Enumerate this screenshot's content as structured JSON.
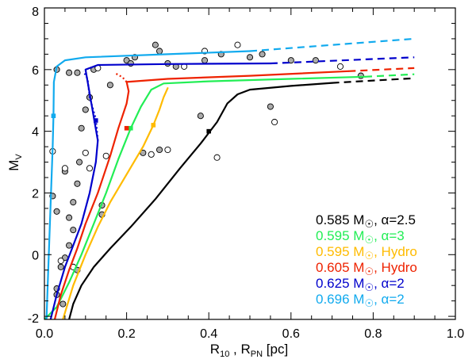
{
  "chart_data": {
    "type": "line",
    "xlabel": "R",
    "xlabel_sub1": "10",
    "xlabel_sep": " , R",
    "xlabel_sub2": "PN",
    "xlabel_unit": " [pc]",
    "ylabel": "M",
    "ylabel_sub": "V",
    "xlim": [
      0.0,
      1.0
    ],
    "ylim": [
      -2.1,
      8.0
    ],
    "xticks": [
      0.0,
      0.2,
      0.4,
      0.6,
      0.8,
      1.0
    ],
    "xtick_labels": [
      "0.0",
      "0.2",
      "0.4",
      "0.6",
      "0.8",
      "1.0"
    ],
    "yticks": [
      -2,
      0,
      2,
      4,
      6,
      8
    ],
    "ytick_labels": [
      "-2",
      "0",
      "2",
      "4",
      "6",
      "8"
    ],
    "series": [
      {
        "name": "0.585 M☉, α=2.5",
        "mass": "0.585 M",
        "param": ", α=2.5",
        "color": "#000000",
        "solid": [
          [
            0.06,
            -2.1
          ],
          [
            0.07,
            -1.6
          ],
          [
            0.09,
            -1.0
          ],
          [
            0.12,
            -0.4
          ],
          [
            0.16,
            0.2
          ],
          [
            0.21,
            0.9
          ],
          [
            0.27,
            1.8
          ],
          [
            0.33,
            2.8
          ],
          [
            0.38,
            3.6
          ],
          [
            0.42,
            4.3
          ],
          [
            0.445,
            4.9
          ],
          [
            0.47,
            5.2
          ],
          [
            0.5,
            5.35
          ],
          [
            0.6,
            5.47
          ],
          [
            0.7,
            5.57
          ]
        ],
        "dashed": [
          [
            0.7,
            5.57
          ],
          [
            0.9,
            5.72
          ]
        ],
        "dotted": [],
        "marker": [
          0.4,
          4.0
        ]
      },
      {
        "name": "0.595 M☉, α=3",
        "mass": "0.595 M",
        "param": ", α=3",
        "color": "#22ee55",
        "solid": [
          [
            0.0,
            -2.1
          ],
          [
            0.03,
            -1.7
          ],
          [
            0.06,
            -0.9
          ],
          [
            0.09,
            0.0
          ],
          [
            0.12,
            1.0
          ],
          [
            0.15,
            2.0
          ],
          [
            0.18,
            3.1
          ],
          [
            0.21,
            4.1
          ],
          [
            0.235,
            4.8
          ],
          [
            0.26,
            5.35
          ],
          [
            0.29,
            5.55
          ],
          [
            0.4,
            5.62
          ],
          [
            0.6,
            5.7
          ],
          [
            0.78,
            5.77
          ]
        ],
        "dashed": [
          [
            0.78,
            5.77
          ],
          [
            0.9,
            5.85
          ]
        ],
        "dotted": [],
        "marker": [
          0.21,
          4.1
        ]
      },
      {
        "name": "0.595 M☉, Hydro",
        "mass": "0.595 M",
        "param": ", Hydro",
        "color": "#ffbb00",
        "solid": [
          [
            0.045,
            -2.1
          ],
          [
            0.07,
            -1.0
          ],
          [
            0.1,
            0.0
          ],
          [
            0.13,
            0.9
          ],
          [
            0.16,
            1.7
          ],
          [
            0.2,
            2.6
          ],
          [
            0.24,
            3.5
          ],
          [
            0.265,
            4.2
          ],
          [
            0.28,
            4.7
          ],
          [
            0.29,
            5.1
          ],
          [
            0.3,
            5.4
          ]
        ],
        "dashed": [],
        "dotted": [],
        "marker": [
          0.265,
          4.2
        ]
      },
      {
        "name": "0.605 M☉, Hydro",
        "mass": "0.605 M",
        "param": ", Hydro",
        "color": "#ee2200",
        "solid": [
          [
            0.025,
            -2.1
          ],
          [
            0.04,
            -1.3
          ],
          [
            0.06,
            -0.5
          ],
          [
            0.08,
            0.2
          ],
          [
            0.1,
            1.0
          ],
          [
            0.13,
            2.0
          ],
          [
            0.16,
            3.2
          ],
          [
            0.18,
            4.1
          ],
          [
            0.2,
            4.9
          ],
          [
            0.205,
            5.3
          ],
          [
            0.2,
            5.6
          ],
          [
            0.3,
            5.7
          ],
          [
            0.5,
            5.8
          ],
          [
            0.74,
            5.95
          ]
        ],
        "dashed": [
          [
            0.74,
            5.95
          ],
          [
            0.9,
            6.05
          ]
        ],
        "dotted": [
          [
            0.2,
            5.6
          ],
          [
            0.19,
            5.75
          ],
          [
            0.17,
            5.9
          ]
        ],
        "marker": [
          0.2,
          4.1
        ]
      },
      {
        "name": "0.625 M☉, α=2",
        "mass": "0.625 M",
        "param": ", α=2",
        "color": "#0000cc",
        "solid": [
          [
            0.015,
            -2.1
          ],
          [
            0.03,
            -1.3
          ],
          [
            0.05,
            -0.4
          ],
          [
            0.07,
            0.3
          ],
          [
            0.09,
            1.0
          ],
          [
            0.11,
            2.0
          ],
          [
            0.125,
            3.0
          ],
          [
            0.13,
            3.7
          ],
          [
            0.1,
            6.0
          ],
          [
            0.13,
            6.15
          ],
          [
            0.3,
            6.18
          ],
          [
            0.55,
            6.2
          ]
        ],
        "dashed": [
          [
            0.55,
            6.2
          ],
          [
            0.9,
            6.4
          ]
        ],
        "dotted": [
          [
            0.13,
            3.7
          ],
          [
            0.125,
            4.4
          ],
          [
            0.11,
            5.1
          ],
          [
            0.105,
            5.7
          ],
          [
            0.095,
            5.95
          ]
        ],
        "marker": [
          0.125,
          4.35
        ]
      },
      {
        "name": "0.696 M☉, α=2",
        "mass": "0.696 M",
        "param": ", α=2",
        "color": "#11aaee",
        "solid": [
          [
            0.005,
            -2.1
          ],
          [
            0.008,
            -1.0
          ],
          [
            0.012,
            0.5
          ],
          [
            0.016,
            2.0
          ],
          [
            0.02,
            3.5
          ],
          [
            0.022,
            4.5
          ],
          [
            0.023,
            5.6
          ],
          [
            0.03,
            6.1
          ],
          [
            0.05,
            6.3
          ],
          [
            0.1,
            6.4
          ],
          [
            0.3,
            6.5
          ],
          [
            0.5,
            6.6
          ]
        ],
        "dashed": [
          [
            0.5,
            6.6
          ],
          [
            0.9,
            7.0
          ]
        ],
        "dotted": [],
        "marker": [
          0.022,
          4.5
        ]
      }
    ],
    "points_filled": [
      [
        0.03,
        -1.1
      ],
      [
        0.04,
        -0.4
      ],
      [
        0.045,
        -1.6
      ],
      [
        0.05,
        -0.1
      ],
      [
        0.06,
        0.3
      ],
      [
        0.07,
        0.8
      ],
      [
        0.06,
        1.2
      ],
      [
        0.03,
        1.4
      ],
      [
        0.02,
        1.9
      ],
      [
        0.07,
        1.7
      ],
      [
        0.08,
        2.3
      ],
      [
        0.05,
        2.7
      ],
      [
        0.085,
        3.0
      ],
      [
        0.09,
        4.1
      ],
      [
        0.1,
        4.7
      ],
      [
        0.11,
        5.1
      ],
      [
        0.12,
        6.0
      ],
      [
        0.06,
        5.9
      ],
      [
        0.08,
        5.9
      ],
      [
        0.03,
        6.0
      ],
      [
        0.16,
        5.5
      ],
      [
        0.2,
        6.3
      ],
      [
        0.21,
        6.2
      ],
      [
        0.22,
        6.4
      ],
      [
        0.27,
        6.8
      ],
      [
        0.28,
        6.6
      ],
      [
        0.3,
        6.2
      ],
      [
        0.32,
        6.1
      ],
      [
        0.39,
        6.3
      ],
      [
        0.43,
        6.5
      ],
      [
        0.5,
        6.4
      ],
      [
        0.53,
        6.5
      ],
      [
        0.6,
        6.3
      ],
      [
        0.66,
        6.3
      ],
      [
        0.28,
        3.4
      ],
      [
        0.24,
        3.3
      ],
      [
        0.14,
        1.6
      ],
      [
        0.14,
        1.3
      ],
      [
        0.08,
        -0.5
      ],
      [
        0.03,
        -1.3
      ],
      [
        0.38,
        4.5
      ],
      [
        0.55,
        4.8
      ],
      [
        0.77,
        5.8
      ]
    ],
    "points_open": [
      [
        0.02,
        3.35
      ],
      [
        0.04,
        -0.2
      ],
      [
        0.05,
        2.8
      ],
      [
        0.1,
        3.3
      ],
      [
        0.15,
        3.2
      ],
      [
        0.07,
        -0.4
      ],
      [
        0.26,
        3.25
      ],
      [
        0.3,
        3.4
      ],
      [
        0.42,
        3.15
      ],
      [
        0.56,
        4.3
      ],
      [
        0.47,
        6.8
      ],
      [
        0.39,
        6.6
      ],
      [
        0.72,
        6.1
      ],
      [
        0.34,
        6.1
      ],
      [
        0.13,
        6.05
      ],
      [
        0.11,
        2.8
      ]
    ],
    "legend_position": "bottom-right"
  }
}
